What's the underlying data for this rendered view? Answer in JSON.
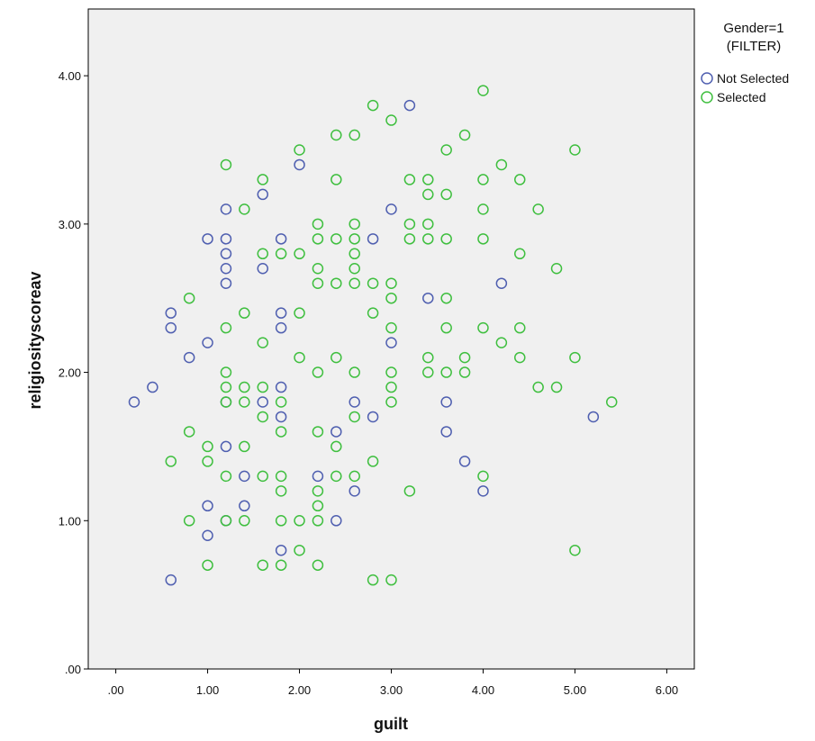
{
  "chart_data": {
    "type": "scatter",
    "xlabel": "guilt",
    "ylabel": "religiosityscoreav",
    "xlim": [
      -0.3,
      6.3
    ],
    "ylim": [
      0,
      4.45
    ],
    "xticks": [
      0,
      1,
      2,
      3,
      4,
      5,
      6
    ],
    "xtick_labels": [
      ".00",
      "1.00",
      "2.00",
      "3.00",
      "4.00",
      "5.00",
      "6.00"
    ],
    "yticks": [
      0,
      1,
      2,
      3,
      4
    ],
    "ytick_labels": [
      ".00",
      "1.00",
      "2.00",
      "3.00",
      "4.00"
    ],
    "grid": false,
    "legend": {
      "title_line1": "Gender=1",
      "title_line2": "(FILTER)",
      "placement": "right"
    },
    "series": [
      {
        "name": "Not Selected",
        "color": "#4f5fb0",
        "points": [
          [
            0.2,
            1.8
          ],
          [
            0.4,
            1.9
          ],
          [
            0.6,
            2.4
          ],
          [
            0.6,
            2.3
          ],
          [
            0.6,
            0.6
          ],
          [
            0.8,
            2.1
          ],
          [
            1.0,
            2.9
          ],
          [
            1.0,
            2.2
          ],
          [
            1.0,
            1.1
          ],
          [
            1.0,
            0.9
          ],
          [
            1.2,
            3.1
          ],
          [
            1.2,
            2.9
          ],
          [
            1.2,
            2.8
          ],
          [
            1.2,
            2.7
          ],
          [
            1.2,
            2.6
          ],
          [
            1.2,
            1.8
          ],
          [
            1.2,
            1.5
          ],
          [
            1.2,
            1.0
          ],
          [
            1.4,
            1.3
          ],
          [
            1.4,
            1.1
          ],
          [
            1.6,
            3.2
          ],
          [
            1.6,
            2.7
          ],
          [
            1.6,
            1.8
          ],
          [
            1.8,
            2.9
          ],
          [
            1.8,
            2.4
          ],
          [
            1.8,
            2.3
          ],
          [
            1.8,
            1.9
          ],
          [
            1.8,
            1.7
          ],
          [
            1.8,
            0.8
          ],
          [
            2.0,
            3.4
          ],
          [
            2.2,
            1.3
          ],
          [
            2.4,
            1.6
          ],
          [
            2.4,
            1.0
          ],
          [
            2.6,
            1.8
          ],
          [
            2.6,
            1.2
          ],
          [
            2.8,
            2.9
          ],
          [
            2.8,
            1.7
          ],
          [
            3.0,
            3.1
          ],
          [
            3.0,
            2.2
          ],
          [
            3.2,
            3.8
          ],
          [
            3.4,
            2.5
          ],
          [
            3.6,
            1.8
          ],
          [
            3.6,
            1.6
          ],
          [
            3.8,
            1.4
          ],
          [
            4.0,
            1.2
          ],
          [
            4.2,
            2.6
          ],
          [
            5.2,
            1.7
          ]
        ]
      },
      {
        "name": "Selected",
        "color": "#3fbf3f",
        "points": [
          [
            0.6,
            1.4
          ],
          [
            0.8,
            2.5
          ],
          [
            0.8,
            1.6
          ],
          [
            0.8,
            1.0
          ],
          [
            1.0,
            1.5
          ],
          [
            1.0,
            1.4
          ],
          [
            1.0,
            0.7
          ],
          [
            1.2,
            3.4
          ],
          [
            1.2,
            2.3
          ],
          [
            1.2,
            2.0
          ],
          [
            1.2,
            1.9
          ],
          [
            1.2,
            1.8
          ],
          [
            1.2,
            1.3
          ],
          [
            1.2,
            1.0
          ],
          [
            1.4,
            3.1
          ],
          [
            1.4,
            2.4
          ],
          [
            1.4,
            1.9
          ],
          [
            1.4,
            1.8
          ],
          [
            1.4,
            1.5
          ],
          [
            1.4,
            1.0
          ],
          [
            1.6,
            3.3
          ],
          [
            1.6,
            2.8
          ],
          [
            1.6,
            2.2
          ],
          [
            1.6,
            1.9
          ],
          [
            1.6,
            1.7
          ],
          [
            1.6,
            1.3
          ],
          [
            1.6,
            0.7
          ],
          [
            1.8,
            2.8
          ],
          [
            1.8,
            1.8
          ],
          [
            1.8,
            1.6
          ],
          [
            1.8,
            1.3
          ],
          [
            1.8,
            1.2
          ],
          [
            1.8,
            1.0
          ],
          [
            1.8,
            0.7
          ],
          [
            2.0,
            3.5
          ],
          [
            2.0,
            2.8
          ],
          [
            2.0,
            2.4
          ],
          [
            2.0,
            2.1
          ],
          [
            2.0,
            1.0
          ],
          [
            2.0,
            0.8
          ],
          [
            2.2,
            3.0
          ],
          [
            2.2,
            2.9
          ],
          [
            2.2,
            2.7
          ],
          [
            2.2,
            2.6
          ],
          [
            2.2,
            2.0
          ],
          [
            2.2,
            1.6
          ],
          [
            2.2,
            1.2
          ],
          [
            2.2,
            1.1
          ],
          [
            2.2,
            1.0
          ],
          [
            2.2,
            0.7
          ],
          [
            2.4,
            3.6
          ],
          [
            2.4,
            3.3
          ],
          [
            2.4,
            2.9
          ],
          [
            2.4,
            2.6
          ],
          [
            2.4,
            2.1
          ],
          [
            2.4,
            1.5
          ],
          [
            2.4,
            1.3
          ],
          [
            2.6,
            3.6
          ],
          [
            2.6,
            3.0
          ],
          [
            2.6,
            2.9
          ],
          [
            2.6,
            2.8
          ],
          [
            2.6,
            2.7
          ],
          [
            2.6,
            2.6
          ],
          [
            2.6,
            2.0
          ],
          [
            2.6,
            1.7
          ],
          [
            2.6,
            1.3
          ],
          [
            2.8,
            3.8
          ],
          [
            2.8,
            2.6
          ],
          [
            2.8,
            2.4
          ],
          [
            2.8,
            1.4
          ],
          [
            2.8,
            0.6
          ],
          [
            3.0,
            3.7
          ],
          [
            3.0,
            2.6
          ],
          [
            3.0,
            2.5
          ],
          [
            3.0,
            2.3
          ],
          [
            3.0,
            2.0
          ],
          [
            3.0,
            1.9
          ],
          [
            3.0,
            1.8
          ],
          [
            3.0,
            0.6
          ],
          [
            3.2,
            3.3
          ],
          [
            3.2,
            3.0
          ],
          [
            3.2,
            2.9
          ],
          [
            3.2,
            1.2
          ],
          [
            3.4,
            3.3
          ],
          [
            3.4,
            3.2
          ],
          [
            3.4,
            3.0
          ],
          [
            3.4,
            2.9
          ],
          [
            3.4,
            2.1
          ],
          [
            3.4,
            2.0
          ],
          [
            3.6,
            3.5
          ],
          [
            3.6,
            3.2
          ],
          [
            3.6,
            2.9
          ],
          [
            3.6,
            2.5
          ],
          [
            3.6,
            2.3
          ],
          [
            3.6,
            2.0
          ],
          [
            3.8,
            3.6
          ],
          [
            3.8,
            2.1
          ],
          [
            3.8,
            2.0
          ],
          [
            4.0,
            3.9
          ],
          [
            4.0,
            3.3
          ],
          [
            4.0,
            3.1
          ],
          [
            4.0,
            2.9
          ],
          [
            4.0,
            2.3
          ],
          [
            4.0,
            1.3
          ],
          [
            4.2,
            3.4
          ],
          [
            4.2,
            2.2
          ],
          [
            4.4,
            3.3
          ],
          [
            4.4,
            2.8
          ],
          [
            4.4,
            2.3
          ],
          [
            4.4,
            2.1
          ],
          [
            4.6,
            3.1
          ],
          [
            4.6,
            1.9
          ],
          [
            4.8,
            2.7
          ],
          [
            4.8,
            1.9
          ],
          [
            5.0,
            3.5
          ],
          [
            5.0,
            2.1
          ],
          [
            5.0,
            0.8
          ],
          [
            5.4,
            1.8
          ]
        ]
      }
    ]
  }
}
